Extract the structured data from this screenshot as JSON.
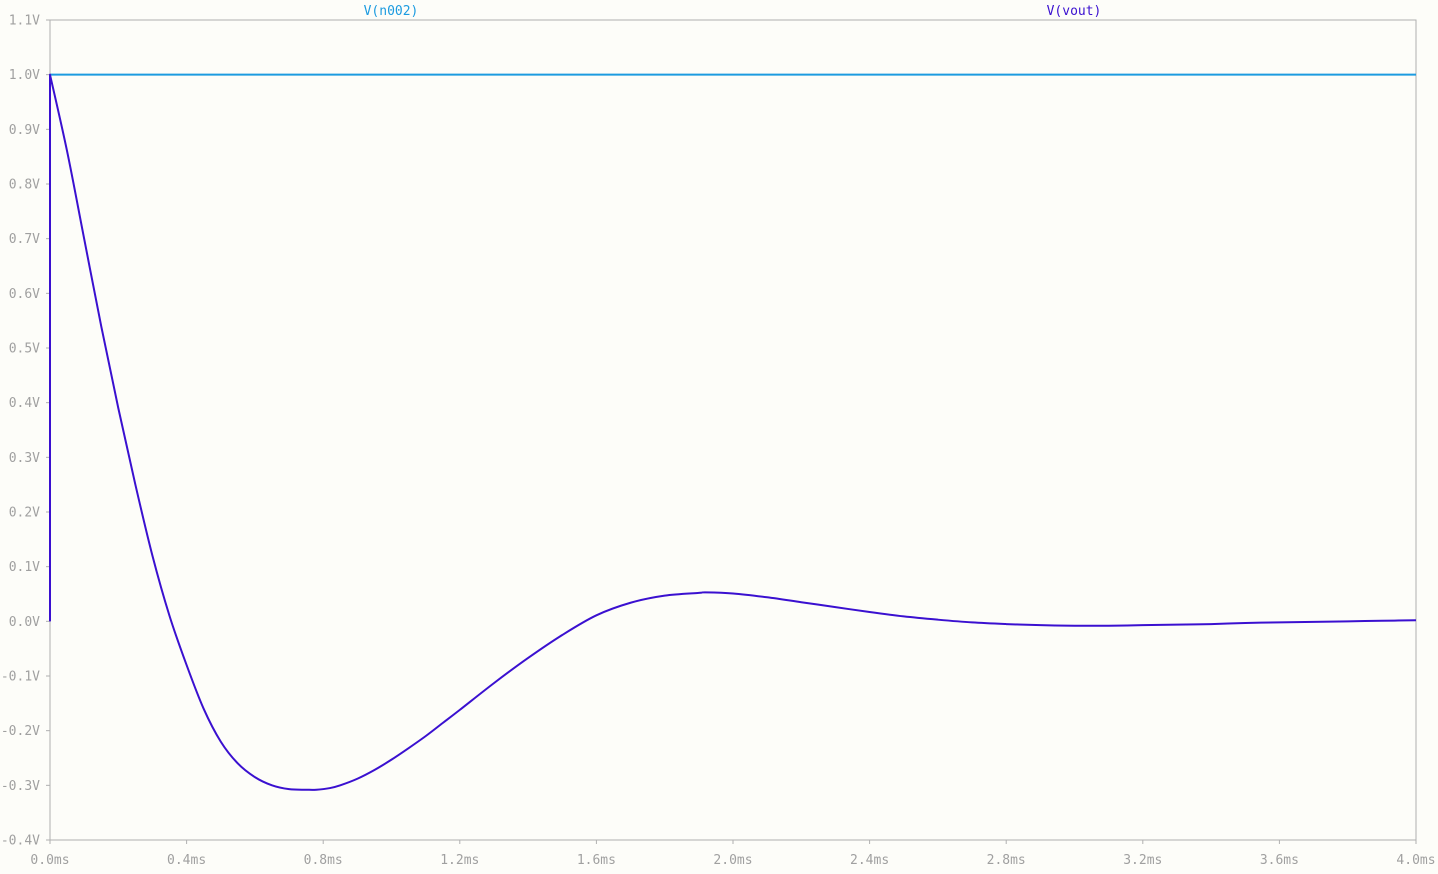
{
  "colors": {
    "background": "#fdfdf9",
    "axis": "#b0b0b0",
    "tick_label": "#a0a0a0"
  },
  "chart_data": {
    "type": "line",
    "title": "",
    "xlabel": "",
    "ylabel": "",
    "xlim": [
      0,
      4.0
    ],
    "ylim": [
      -0.4,
      1.1
    ],
    "x_ticks": [
      0.0,
      0.4,
      0.8,
      1.2,
      1.6,
      2.0,
      2.4,
      2.8,
      3.2,
      3.6,
      4.0
    ],
    "x_tick_labels": [
      "0.0ms",
      "0.4ms",
      "0.8ms",
      "1.2ms",
      "1.6ms",
      "2.0ms",
      "2.4ms",
      "2.8ms",
      "3.2ms",
      "3.6ms",
      "4.0ms"
    ],
    "y_ticks": [
      1.1,
      1.0,
      0.9,
      0.8,
      0.7,
      0.6,
      0.5,
      0.4,
      0.3,
      0.2,
      0.1,
      0.0,
      -0.1,
      -0.2,
      -0.3,
      -0.4
    ],
    "y_tick_labels": [
      "1.1V",
      "1.0V",
      "0.9V",
      "0.8V",
      "0.7V",
      "0.6V",
      "0.5V",
      "0.4V",
      "0.3V",
      "0.2V",
      "0.1V",
      "0.0V",
      "-0.1V",
      "-0.2V",
      "-0.3V",
      "-0.4V"
    ],
    "grid": false,
    "series": [
      {
        "name": "V(n002)",
        "color": "#1c9be0",
        "x": [
          0.0,
          4.0
        ],
        "y": [
          1.0,
          1.0
        ]
      },
      {
        "name": "V(vout)",
        "color": "#3a10d0",
        "x": [
          0.0,
          0.0,
          0.05,
          0.1,
          0.15,
          0.2,
          0.25,
          0.3,
          0.35,
          0.4,
          0.45,
          0.5,
          0.55,
          0.6,
          0.65,
          0.7,
          0.75,
          0.78,
          0.82,
          0.85,
          0.9,
          0.95,
          1.0,
          1.05,
          1.1,
          1.15,
          1.2,
          1.3,
          1.4,
          1.5,
          1.6,
          1.7,
          1.8,
          1.9,
          1.92,
          2.0,
          2.1,
          2.2,
          2.3,
          2.4,
          2.5,
          2.6,
          2.7,
          2.8,
          2.9,
          3.0,
          3.1,
          3.2,
          3.3,
          3.4,
          3.5,
          3.6,
          3.7,
          3.8,
          3.9,
          4.0
        ],
        "y": [
          0.0,
          1.0,
          0.86,
          0.7,
          0.54,
          0.39,
          0.25,
          0.12,
          0.01,
          -0.08,
          -0.16,
          -0.22,
          -0.26,
          -0.285,
          -0.3,
          -0.307,
          -0.308,
          -0.308,
          -0.305,
          -0.3,
          -0.288,
          -0.272,
          -0.253,
          -0.232,
          -0.21,
          -0.186,
          -0.162,
          -0.113,
          -0.067,
          -0.025,
          0.011,
          0.034,
          0.047,
          0.052,
          0.053,
          0.051,
          0.044,
          0.035,
          0.026,
          0.017,
          0.009,
          0.003,
          -0.002,
          -0.005,
          -0.007,
          -0.008,
          -0.008,
          -0.007,
          -0.006,
          -0.005,
          -0.003,
          -0.002,
          -0.001,
          0.0,
          0.001,
          0.002
        ]
      }
    ]
  }
}
